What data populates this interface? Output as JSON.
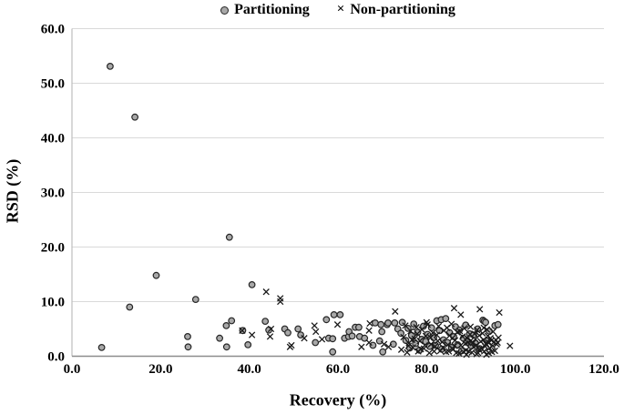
{
  "colors": {
    "background": "#ffffff",
    "gridline": "#d9d9d9",
    "axis_line_x": "#8c8c8c",
    "axis_line_y": "#bfbfbf",
    "text": "#000000",
    "circle_fill": "#a8a8a8",
    "circle_stroke": "#262626",
    "x_stroke": "#1a1a1a"
  },
  "chart_data": {
    "type": "scatter",
    "title": "",
    "xlabel": "Recovery (%)",
    "ylabel": "RSD (%)",
    "xlim": [
      0,
      120
    ],
    "ylim": [
      0,
      60
    ],
    "x_ticks": [
      0,
      20,
      40,
      60,
      80,
      100,
      120
    ],
    "y_ticks": [
      0,
      10,
      20,
      30,
      40,
      50,
      60
    ],
    "x_tick_labels": [
      "0.0",
      "20.0",
      "40.0",
      "60.0",
      "80.0",
      "100.0",
      "120.0"
    ],
    "y_tick_labels": [
      "0.0",
      "10.0",
      "20.0",
      "30.0",
      "40.0",
      "50.0",
      "60.0"
    ],
    "grid": "horizontal",
    "legend_position": "top-center",
    "series": [
      {
        "name": "Partitioning",
        "marker": "circle",
        "points": [
          [
            6.7,
            1.6
          ],
          [
            8.6,
            53.1
          ],
          [
            13.0,
            9.0
          ],
          [
            14.2,
            43.8
          ],
          [
            19.0,
            14.8
          ],
          [
            26.1,
            3.6
          ],
          [
            26.2,
            1.7
          ],
          [
            27.9,
            10.4
          ],
          [
            33.3,
            3.3
          ],
          [
            34.8,
            5.6
          ],
          [
            34.9,
            1.7
          ],
          [
            35.5,
            21.8
          ],
          [
            36.0,
            6.5
          ],
          [
            38.5,
            4.7
          ],
          [
            39.7,
            2.1
          ],
          [
            40.6,
            13.1
          ],
          [
            43.6,
            6.4
          ],
          [
            44.4,
            4.8
          ],
          [
            48.0,
            5.0
          ],
          [
            48.7,
            4.3
          ],
          [
            51.0,
            5.0
          ],
          [
            51.6,
            3.9
          ],
          [
            54.9,
            2.5
          ],
          [
            57.4,
            6.7
          ],
          [
            57.9,
            3.3
          ],
          [
            58.8,
            3.2
          ],
          [
            58.8,
            0.8
          ],
          [
            59.1,
            7.6
          ],
          [
            60.5,
            7.6
          ],
          [
            61.5,
            3.3
          ],
          [
            62.4,
            3.6
          ],
          [
            62.5,
            4.5
          ],
          [
            63.2,
            3.7
          ],
          [
            63.9,
            5.3
          ],
          [
            64.7,
            5.3
          ],
          [
            64.9,
            3.6
          ],
          [
            66.0,
            3.3
          ],
          [
            67.9,
            2.0
          ],
          [
            68.4,
            6.1
          ],
          [
            69.4,
            2.8
          ],
          [
            69.7,
            5.8
          ],
          [
            69.9,
            4.5
          ],
          [
            70.1,
            0.8
          ],
          [
            71.1,
            5.8
          ],
          [
            71.3,
            6.1
          ],
          [
            72.5,
            2.2
          ],
          [
            72.8,
            6.1
          ],
          [
            73.5,
            5.0
          ],
          [
            74.2,
            4.2
          ],
          [
            74.5,
            6.2
          ],
          [
            75.3,
            2.9
          ],
          [
            75.8,
            5.1
          ],
          [
            76.2,
            1.5
          ],
          [
            76.6,
            3.8
          ],
          [
            77.1,
            5.9
          ],
          [
            77.5,
            2.3
          ],
          [
            78.0,
            4.4
          ],
          [
            78.4,
            1.1
          ],
          [
            78.9,
            3.1
          ],
          [
            79.3,
            5.5
          ],
          [
            79.8,
            2.7
          ],
          [
            80.2,
            4.0
          ],
          [
            80.7,
            1.8
          ],
          [
            81.1,
            5.2
          ],
          [
            81.6,
            3.4
          ],
          [
            82.0,
            2.0
          ],
          [
            82.3,
            6.5
          ],
          [
            82.9,
            4.7
          ],
          [
            83.3,
            6.7
          ],
          [
            83.4,
            1.3
          ],
          [
            83.8,
            3.0
          ],
          [
            84.3,
            6.9
          ],
          [
            84.7,
            2.5
          ],
          [
            85.2,
            4.3
          ],
          [
            85.6,
            1.6
          ],
          [
            86.1,
            3.6
          ],
          [
            86.5,
            5.4
          ],
          [
            87.0,
            2.1
          ],
          [
            87.4,
            4.8
          ],
          [
            87.9,
            1.0
          ],
          [
            88.3,
            3.3
          ],
          [
            88.8,
            5.7
          ],
          [
            89.2,
            2.6
          ],
          [
            89.7,
            4.1
          ],
          [
            90.1,
            1.9
          ],
          [
            90.6,
            3.9
          ],
          [
            91.0,
            2.4
          ],
          [
            91.5,
            5.0
          ],
          [
            92.0,
            1.4
          ],
          [
            92.7,
            6.6
          ],
          [
            93.0,
            6.4
          ],
          [
            93.3,
            6.2
          ],
          [
            93.6,
            2.8
          ],
          [
            94.1,
            4.6
          ],
          [
            95.4,
            5.6
          ],
          [
            96.1,
            5.8
          ]
        ]
      },
      {
        "name": "Non-partitioning",
        "marker": "x",
        "points": [
          [
            38.4,
            4.7
          ],
          [
            40.6,
            3.9
          ],
          [
            43.8,
            11.8
          ],
          [
            44.7,
            3.6
          ],
          [
            44.9,
            5.0
          ],
          [
            47.0,
            10.6
          ],
          [
            47.0,
            10.0
          ],
          [
            49.2,
            1.7
          ],
          [
            49.5,
            2.0
          ],
          [
            52.4,
            3.3
          ],
          [
            54.7,
            5.6
          ],
          [
            55.0,
            4.5
          ],
          [
            56.4,
            3.1
          ],
          [
            59.9,
            5.8
          ],
          [
            65.3,
            1.7
          ],
          [
            67.0,
            4.7
          ],
          [
            67.0,
            2.5
          ],
          [
            67.2,
            6.0
          ],
          [
            70.4,
            2.2
          ],
          [
            71.4,
            1.7
          ],
          [
            72.9,
            8.2
          ],
          [
            80.0,
            6.2
          ],
          [
            86.2,
            8.8
          ],
          [
            87.7,
            7.6
          ],
          [
            92.0,
            8.6
          ],
          [
            96.4,
            8.0
          ],
          [
            96.0,
            2.5
          ],
          [
            98.8,
            1.9
          ],
          [
            74.3,
            1.2
          ],
          [
            74.8,
            3.5
          ],
          [
            75.2,
            5.6
          ],
          [
            75.6,
            0.7
          ],
          [
            76.0,
            2.4
          ],
          [
            76.4,
            4.6
          ],
          [
            76.9,
            1.6
          ],
          [
            77.3,
            3.2
          ],
          [
            77.7,
            5.3
          ],
          [
            78.1,
            0.9
          ],
          [
            78.5,
            2.8
          ],
          [
            78.9,
            4.9
          ],
          [
            79.4,
            1.4
          ],
          [
            79.8,
            3.7
          ],
          [
            80.2,
            5.8
          ],
          [
            80.6,
            0.6
          ],
          [
            81.0,
            2.2
          ],
          [
            81.4,
            4.3
          ],
          [
            81.9,
            1.8
          ],
          [
            82.3,
            3.9
          ],
          [
            82.7,
            5.5
          ],
          [
            83.1,
            1.0
          ],
          [
            83.5,
            2.6
          ],
          [
            83.9,
            4.7
          ],
          [
            84.4,
            0.8
          ],
          [
            84.8,
            2.1
          ],
          [
            85.2,
            3.8
          ],
          [
            85.6,
            5.9
          ],
          [
            86.0,
            1.3
          ],
          [
            86.4,
            2.9
          ],
          [
            86.9,
            4.4
          ],
          [
            87.3,
            0.5
          ],
          [
            87.7,
            2.0
          ],
          [
            88.1,
            3.6
          ],
          [
            88.5,
            5.1
          ],
          [
            88.9,
            1.1
          ],
          [
            89.3,
            2.5
          ],
          [
            89.8,
            4.0
          ],
          [
            90.2,
            0.7
          ],
          [
            90.6,
            1.7
          ],
          [
            91.0,
            3.1
          ],
          [
            91.4,
            4.8
          ],
          [
            91.8,
            1.2
          ],
          [
            92.2,
            2.7
          ],
          [
            92.6,
            4.2
          ],
          [
            93.0,
            0.9
          ],
          [
            93.4,
            2.3
          ],
          [
            93.8,
            3.7
          ],
          [
            94.2,
            1.5
          ],
          [
            94.6,
            2.9
          ],
          [
            95.0,
            4.5
          ],
          [
            95.4,
            1.0
          ],
          [
            95.8,
            2.2
          ],
          [
            96.2,
            3.4
          ],
          [
            85.0,
            0.9
          ],
          [
            86.7,
            0.6
          ],
          [
            88.3,
            0.8
          ],
          [
            89.9,
            5.4
          ],
          [
            90.4,
            2.4
          ],
          [
            91.6,
            0.6
          ],
          [
            92.9,
            5.2
          ],
          [
            93.2,
            1.8
          ],
          [
            94.0,
            0.6
          ],
          [
            94.4,
            3.3
          ],
          [
            94.9,
            1.9
          ],
          [
            95.2,
            2.6
          ],
          [
            93.6,
            4.9
          ],
          [
            92.4,
            1.4
          ],
          [
            91.2,
            2.0
          ],
          [
            90.8,
            4.1
          ],
          [
            89.5,
            0.9
          ],
          [
            88.7,
            2.3
          ],
          [
            87.5,
            4.6
          ],
          [
            86.3,
            1.9
          ],
          [
            85.8,
            3.3
          ],
          [
            84.6,
            5.2
          ],
          [
            83.7,
            1.6
          ],
          [
            82.5,
            2.8
          ],
          [
            81.7,
            0.9
          ],
          [
            80.9,
            3.4
          ],
          [
            79.6,
            2.0
          ],
          [
            78.7,
            1.3
          ],
          [
            77.9,
            4.1
          ],
          [
            76.7,
            3.0
          ],
          [
            75.9,
            1.9
          ],
          [
            89.1,
            3.4
          ],
          [
            90.0,
            2.9
          ],
          [
            91.9,
            3.8
          ],
          [
            92.8,
            3.0
          ],
          [
            93.9,
            2.5
          ],
          [
            94.7,
            0.8
          ],
          [
            95.6,
            3.0
          ],
          [
            89.0,
            0.3
          ],
          [
            91.3,
            0.4
          ],
          [
            93.5,
            0.3
          ]
        ]
      }
    ]
  }
}
